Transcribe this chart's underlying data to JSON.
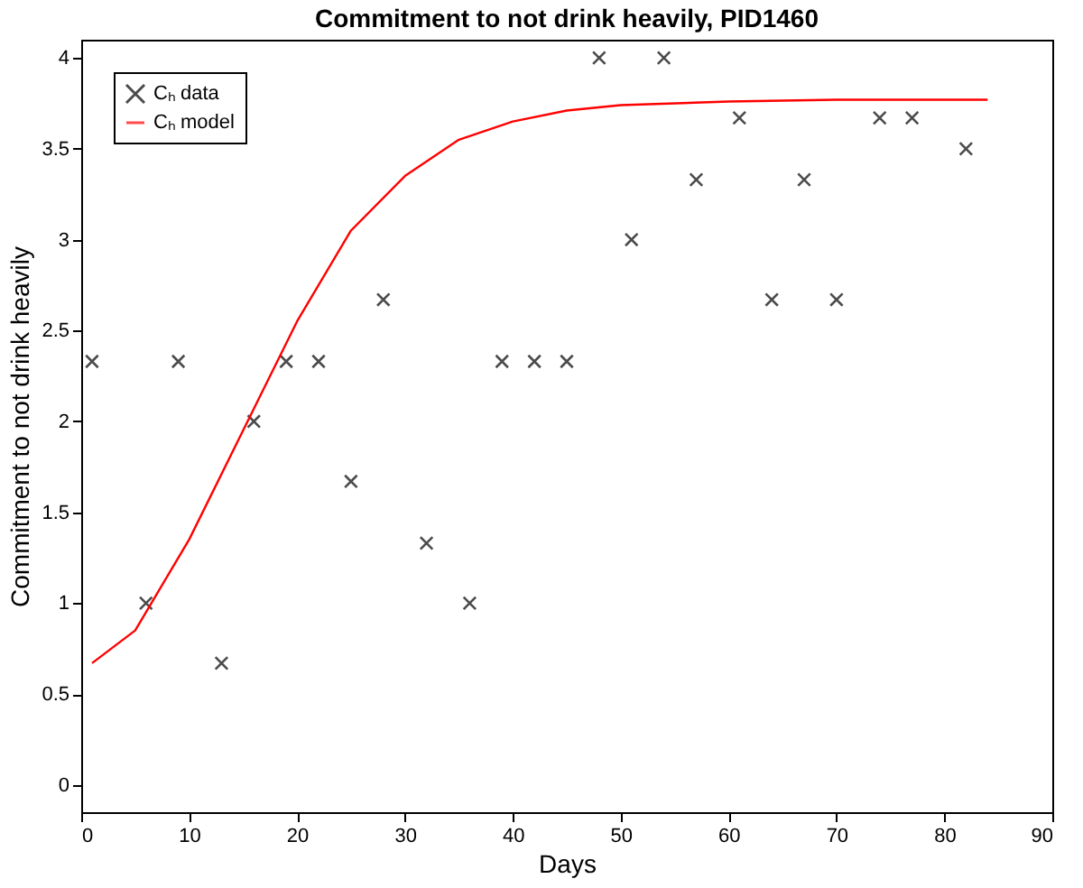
{
  "chart_data": {
    "type": "scatter",
    "title": "Commitment to not drink heavily, PID1460",
    "xlabel": "Days",
    "ylabel": "Commitment to not drink heavily",
    "xlim": [
      0,
      90
    ],
    "xticks": [
      0,
      10,
      20,
      30,
      40,
      50,
      60,
      70,
      80,
      90
    ],
    "ylim": [
      -0.15,
      4.1
    ],
    "yticks": [
      0,
      0.5,
      1,
      1.5,
      2,
      2.5,
      3,
      3.5,
      4
    ],
    "legend": "top left",
    "grid": false,
    "series": [
      {
        "name": "Cₕ data",
        "marker": "cross",
        "color": "#000000",
        "x": [
          1,
          6,
          9,
          13,
          16,
          19,
          22,
          25,
          28,
          32,
          36,
          39,
          42,
          45,
          48,
          51,
          54,
          57,
          61,
          64,
          67,
          70,
          74,
          77,
          82
        ],
        "values": [
          2.33,
          1,
          2.33,
          0.67,
          2,
          2.33,
          2.33,
          1.67,
          2.67,
          1.33,
          1,
          2.33,
          2.33,
          2.33,
          4,
          3,
          4,
          3.33,
          3.67,
          2.67,
          3.33,
          2.67,
          3.67,
          3.67,
          3.5
        ]
      },
      {
        "name": "Cₕ model",
        "type": "line",
        "line_style": "solid",
        "color": "#ff0000",
        "x": [
          1,
          5,
          10,
          15,
          20,
          25,
          30,
          35,
          40,
          45,
          50,
          60,
          70,
          84
        ],
        "values": [
          0.67,
          0.85,
          1.35,
          1.95,
          2.55,
          3.05,
          3.35,
          3.55,
          3.65,
          3.71,
          3.74,
          3.76,
          3.77,
          3.77
        ]
      }
    ]
  }
}
